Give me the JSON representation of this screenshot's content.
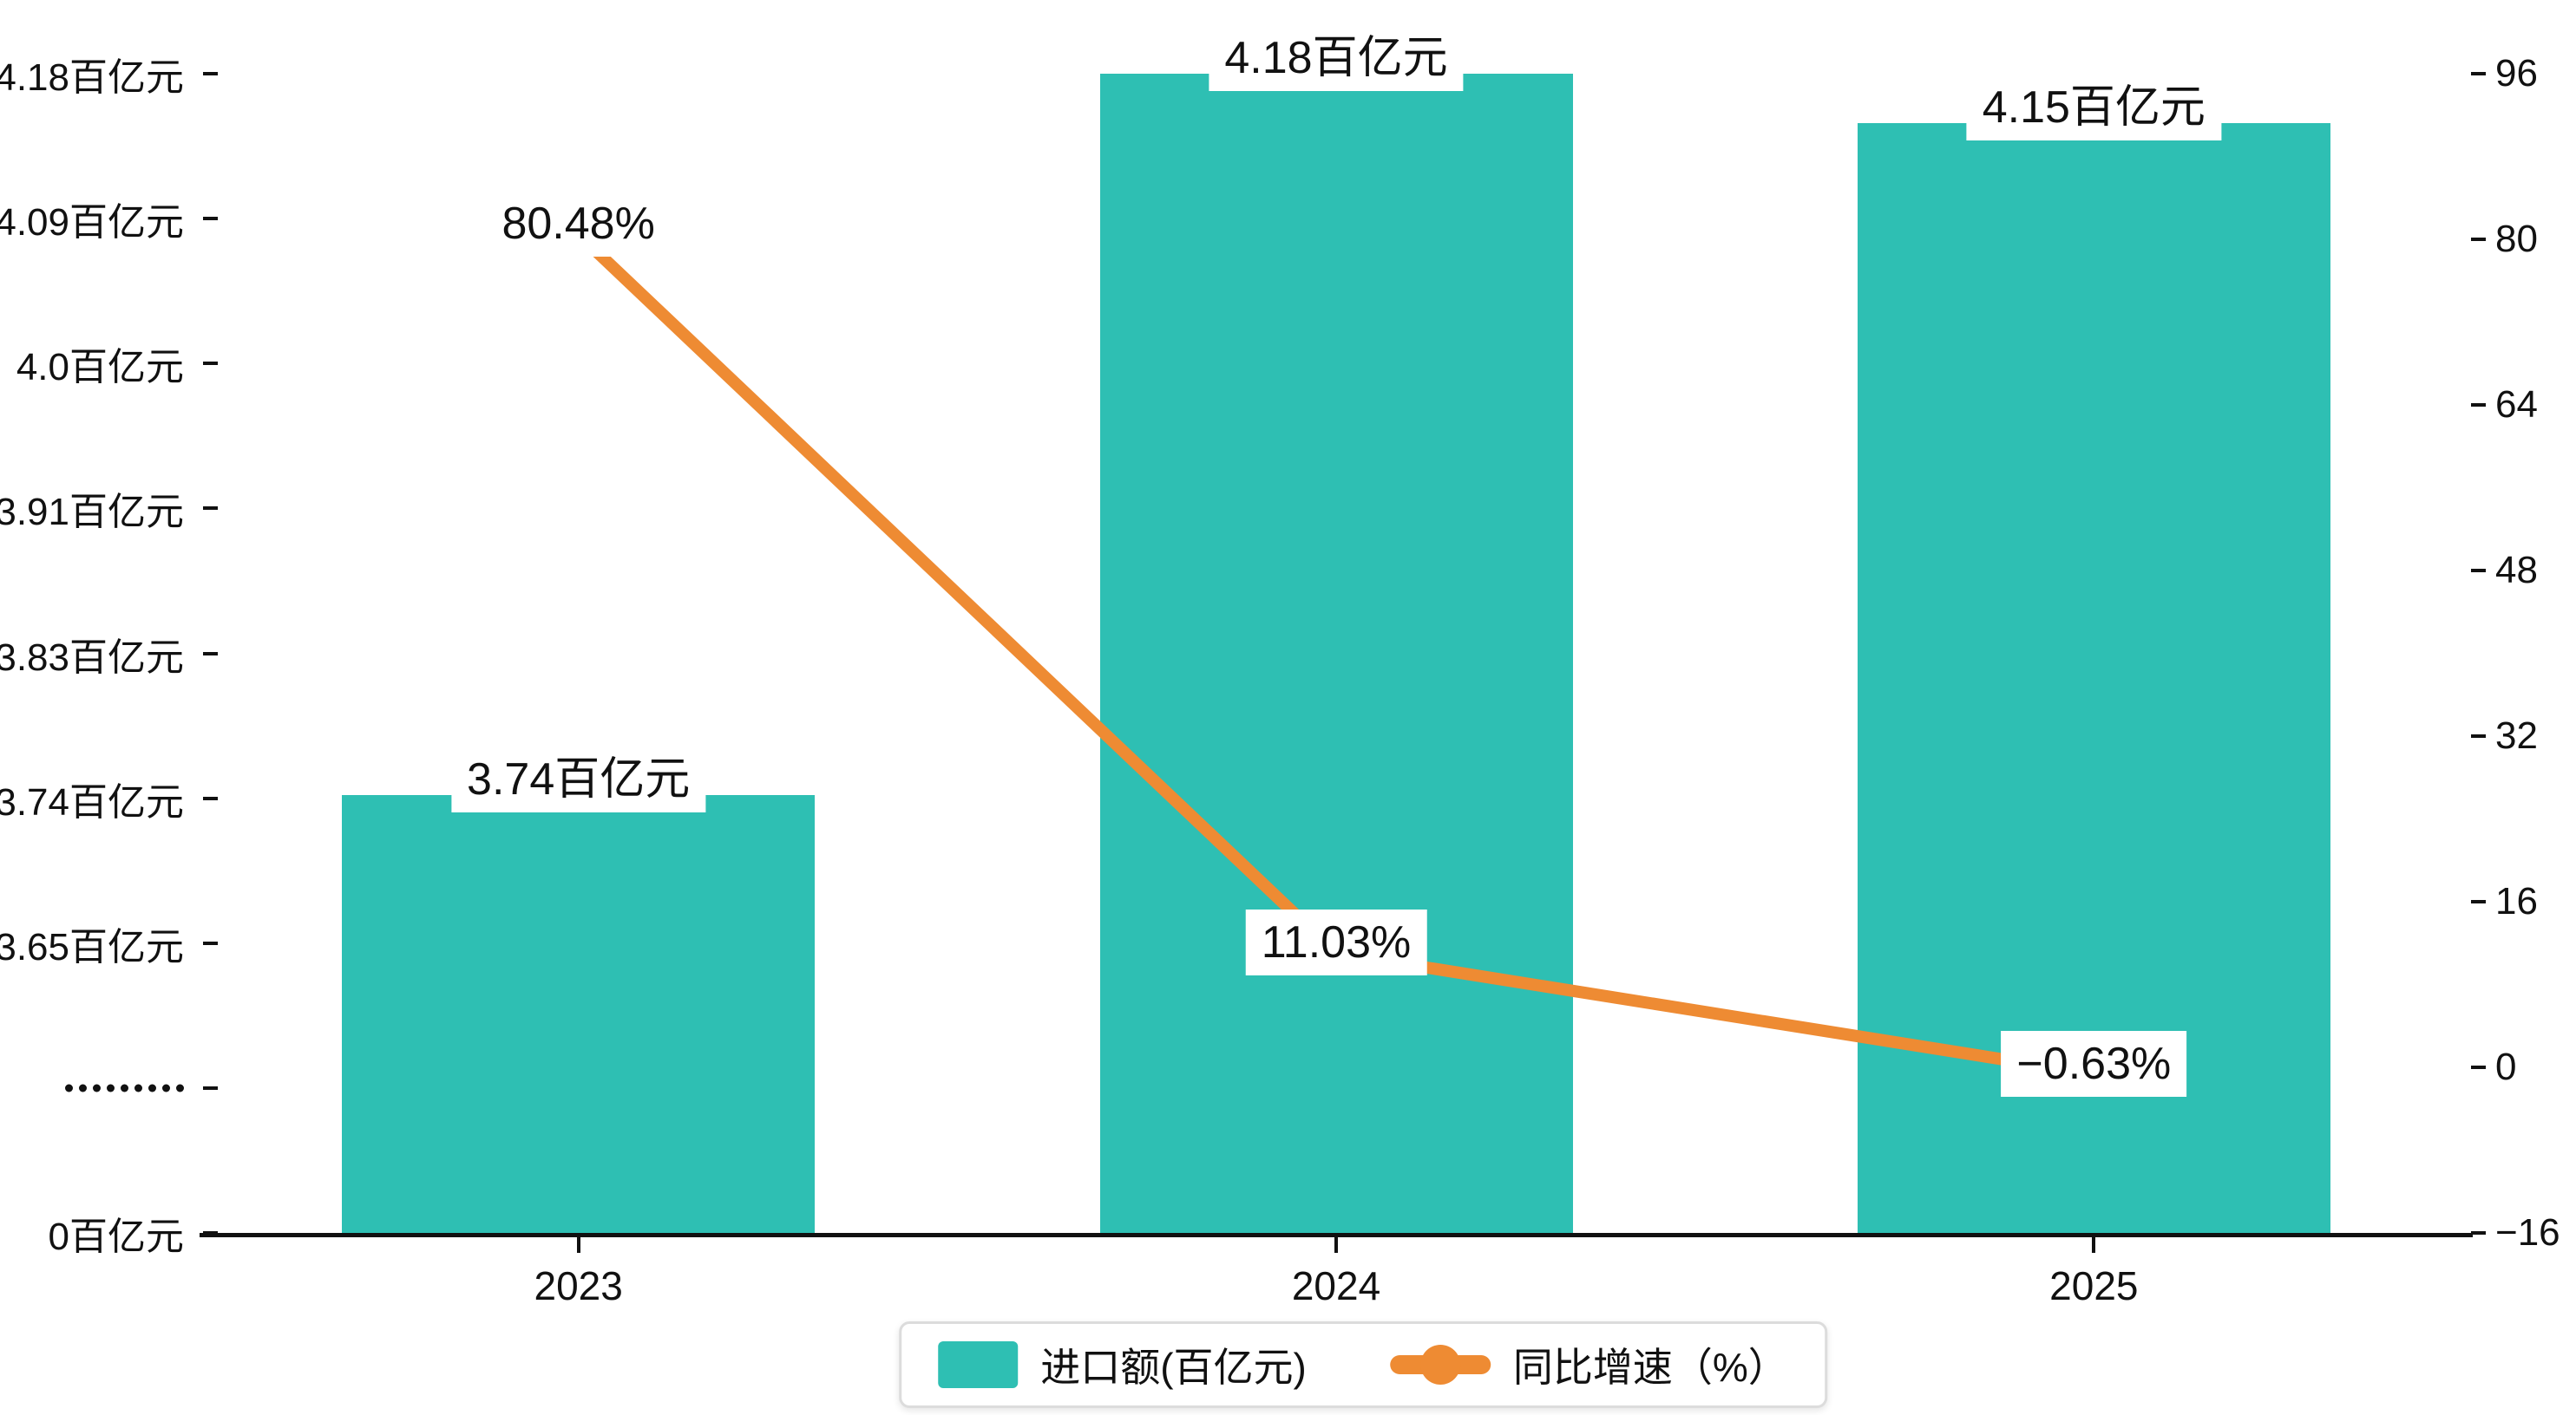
{
  "chart_data": {
    "type": "combo",
    "categories": [
      "2023",
      "2024",
      "2025"
    ],
    "series": [
      {
        "name": "进口额(百亿元)",
        "type": "bar",
        "values": [
          3.74,
          4.18,
          4.15
        ],
        "labels": [
          "3.74百亿元",
          "4.18百亿元",
          "4.15百亿元"
        ],
        "color": "#2EBFB3"
      },
      {
        "name": "同比增速（%）",
        "type": "line",
        "values": [
          80.48,
          11.03,
          -0.63
        ],
        "labels": [
          "80.48%",
          "11.03%",
          "−0.63%"
        ],
        "color": "#EE8B33"
      }
    ],
    "left_axis": {
      "tick_labels_top_to_bottom": [
        "4.18百亿元",
        "4.09百亿元",
        "4.0百亿元",
        "3.91百亿元",
        "3.83百亿元",
        "3.74百亿元",
        "3.65百亿元",
        "·········",
        "0百亿元"
      ],
      "break_row_index": 7,
      "value_at_row_6": 3.65,
      "value_step_per_row": 0.08833
    },
    "right_axis": {
      "tick_labels_top_to_bottom": [
        "96",
        "80",
        "64",
        "48",
        "32",
        "16",
        "0",
        "−16"
      ],
      "min": -16,
      "max": 96
    },
    "legend": [
      {
        "label": "进口额(百亿元)",
        "marker": "bar-swatch"
      },
      {
        "label": "同比增速（%）",
        "marker": "line-dot"
      }
    ],
    "colors": {
      "bar": "#2EBFB3",
      "line": "#EE8B33",
      "axis": "#111111",
      "gridline": "#ECECEC",
      "background": "#FFFFFF",
      "label_background": "#FFFFFF"
    },
    "grid": true,
    "legend_position": "bottom"
  }
}
